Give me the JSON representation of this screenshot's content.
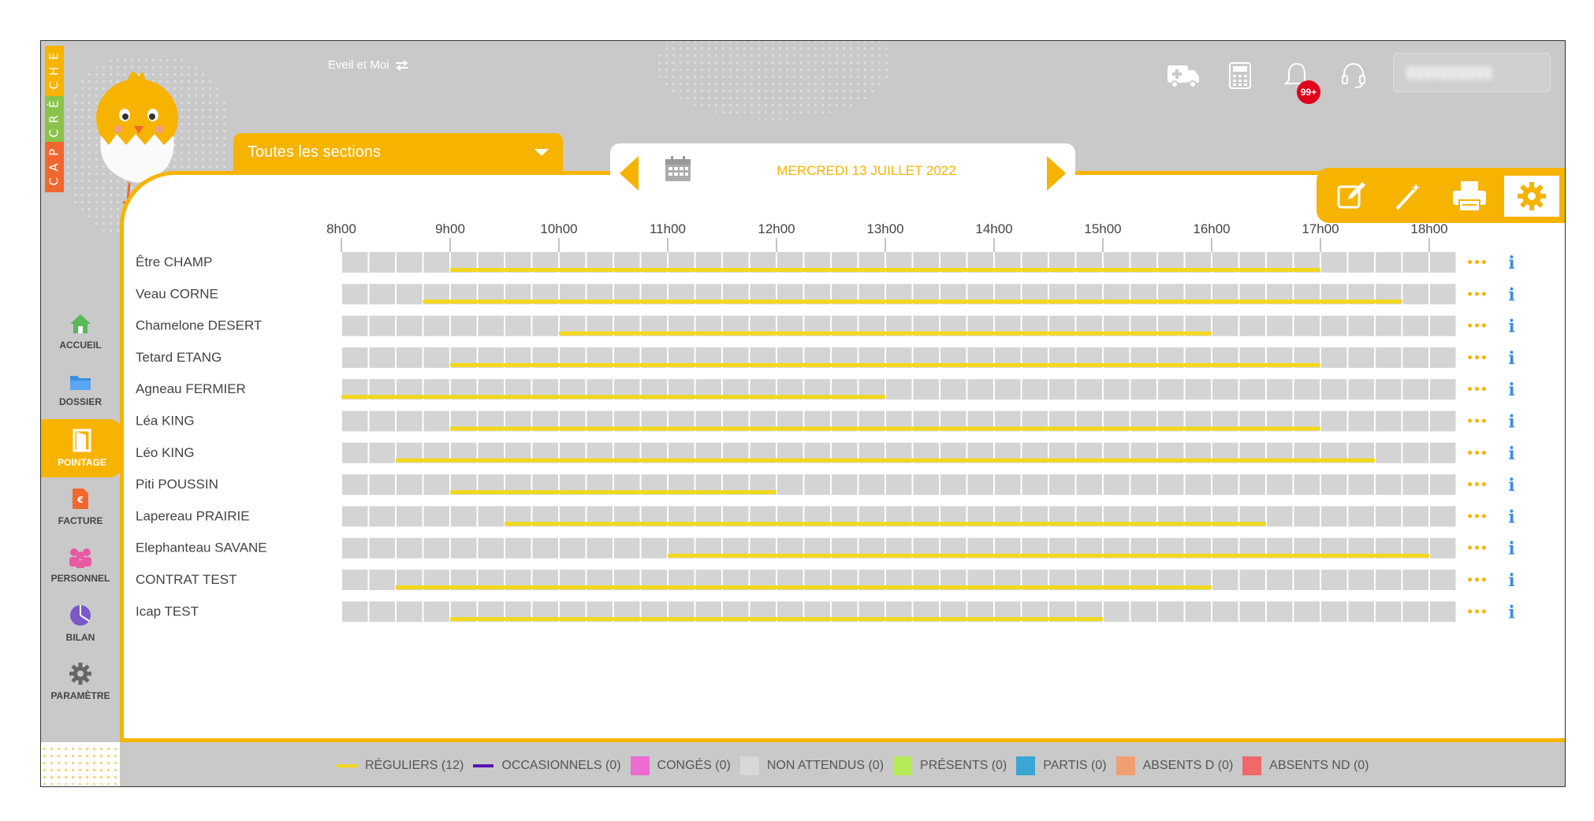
{
  "brand": {
    "logo_letters": [
      "C",
      "A",
      "P",
      "C",
      "R",
      "È",
      "C",
      "H",
      "E"
    ],
    "app_name": "Eveil et Moi"
  },
  "top_icons": [
    "ambulance-icon",
    "calculator-icon",
    "bell-icon",
    "headset-icon"
  ],
  "notifications": {
    "badge": "99+"
  },
  "user": {
    "name": "██████████"
  },
  "section": {
    "selected": "Toutes les sections"
  },
  "date": {
    "label": "MERCREDI 13 JUILLET 2022"
  },
  "toolbar": [
    "edit-icon",
    "magic-wand-icon",
    "print-icon",
    "settings-icon"
  ],
  "nav": [
    {
      "label": "ACCUEIL",
      "icon": "home-icon",
      "color": "#58b95a",
      "active": false
    },
    {
      "label": "DOSSIER",
      "icon": "folder-icon",
      "color": "#3b8fe0",
      "active": false
    },
    {
      "label": "POINTAGE",
      "icon": "door-icon",
      "color": "#ffffff",
      "active": true
    },
    {
      "label": "FACTURE",
      "icon": "invoice-icon",
      "color": "#f0672f",
      "active": false
    },
    {
      "label": "PERSONNEL",
      "icon": "people-icon",
      "color": "#e85aa2",
      "active": false
    },
    {
      "label": "BILAN",
      "icon": "pie-chart-icon",
      "color": "#7a58c8",
      "active": false
    },
    {
      "label": "PARAMÈTRE",
      "icon": "gear-icon",
      "color": "#666666",
      "active": false
    }
  ],
  "colors": {
    "accent": "#f6b300",
    "bar": "#f2d81a",
    "slot": "#d4d4d4"
  },
  "chart_data": {
    "type": "gantt",
    "hours": [
      "8h00",
      "9h00",
      "10h00",
      "11h00",
      "12h00",
      "13h00",
      "14h00",
      "15h00",
      "16h00",
      "17h00",
      "18h00"
    ],
    "x_range": [
      8,
      18.25
    ],
    "rows": [
      {
        "name": "Être CHAMP",
        "start": 9.0,
        "end": 17.0
      },
      {
        "name": "Veau CORNE",
        "start": 8.75,
        "end": 17.75
      },
      {
        "name": "Chamelone DESERT",
        "start": 10.0,
        "end": 16.0
      },
      {
        "name": "Tetard ETANG",
        "start": 9.0,
        "end": 17.0
      },
      {
        "name": "Agneau FERMIER",
        "start": 8.0,
        "end": 13.0
      },
      {
        "name": "Léa KING",
        "start": 9.0,
        "end": 17.0
      },
      {
        "name": "Léo KING",
        "start": 8.5,
        "end": 17.5
      },
      {
        "name": "Piti POUSSIN",
        "start": 9.0,
        "end": 12.0
      },
      {
        "name": "Lapereau PRAIRIE",
        "start": 9.5,
        "end": 16.5
      },
      {
        "name": "Elephanteau SAVANE",
        "start": 11.0,
        "end": 18.0
      },
      {
        "name": "CONTRAT TEST",
        "start": 8.5,
        "end": 16.0
      },
      {
        "name": "Icap TEST",
        "start": 9.0,
        "end": 15.0
      }
    ],
    "row_actions": [
      "•••",
      "i"
    ]
  },
  "legend": [
    {
      "label": "RÉGULIERS (12)",
      "kind": "line",
      "color": "#f2d81a"
    },
    {
      "label": "OCCASIONNELS (0)",
      "kind": "line",
      "color": "#5a14b4"
    },
    {
      "label": "CONGÉS (0)",
      "kind": "square",
      "color": "#ec6ccf"
    },
    {
      "label": "NON ATTENDUS (0)",
      "kind": "square",
      "color": "#d8d8d8"
    },
    {
      "label": "PRÉSENTS (0)",
      "kind": "square",
      "color": "#b4ea58"
    },
    {
      "label": "PARTIS (0)",
      "kind": "square",
      "color": "#3aa6d4"
    },
    {
      "label": "ABSENTS D (0)",
      "kind": "square",
      "color": "#f0a070"
    },
    {
      "label": "ABSENTS ND (0)",
      "kind": "square",
      "color": "#f0686a"
    }
  ]
}
